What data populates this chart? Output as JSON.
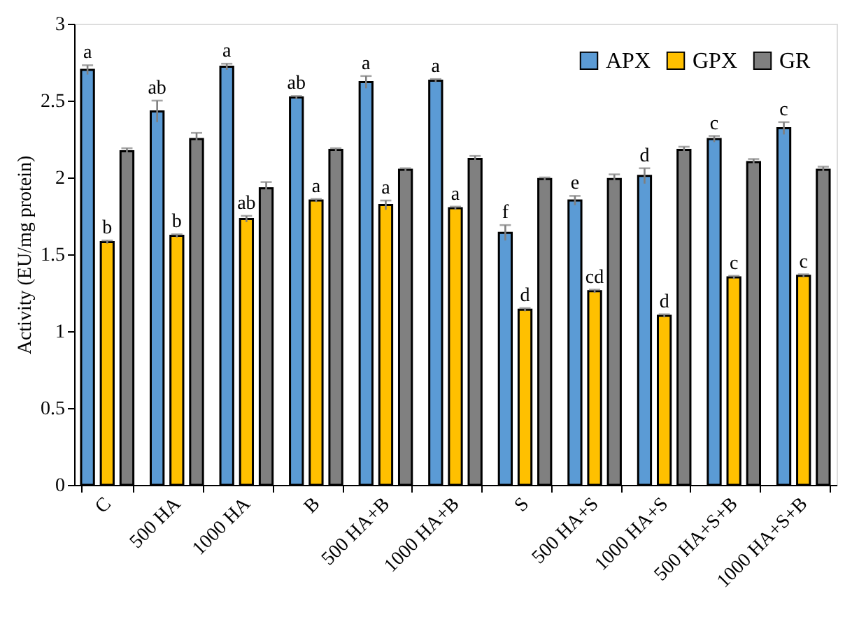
{
  "chart_data": {
    "type": "bar",
    "ylabel": "Activity (EU/mg protein)",
    "categories": [
      "C",
      "500 HA",
      "1000 HA",
      "B",
      "500 HA+B",
      "1000 HA+B",
      "S",
      "500 HA+S",
      "1000 HA+S",
      "500 HA+S+B",
      "1000 HA+S+B"
    ],
    "series": [
      {
        "name": "APX",
        "color": "#5b9bd5",
        "values": [
          2.7,
          2.43,
          2.72,
          2.52,
          2.62,
          2.63,
          1.64,
          1.85,
          2.01,
          2.25,
          2.32
        ],
        "errors": [
          0.03,
          0.07,
          0.02,
          0.01,
          0.04,
          0.01,
          0.05,
          0.03,
          0.05,
          0.02,
          0.04
        ],
        "value_labels": [
          "a",
          "ab",
          "a",
          "ab",
          "a",
          "a",
          "f",
          "e",
          "d",
          "c",
          "c"
        ]
      },
      {
        "name": "GPX",
        "color": "#ffc000",
        "values": [
          1.58,
          1.62,
          1.73,
          1.85,
          1.82,
          1.8,
          1.14,
          1.26,
          1.1,
          1.35,
          1.36
        ],
        "errors": [
          0.01,
          0.01,
          0.02,
          0.01,
          0.03,
          0.01,
          0.01,
          0.01,
          0.01,
          0.01,
          0.01
        ],
        "value_labels": [
          "b",
          "b",
          "ab",
          "a",
          "a",
          "a",
          "d",
          "cd",
          "d",
          "c",
          "c"
        ]
      },
      {
        "name": "GR",
        "color": "#808080",
        "values": [
          2.17,
          2.25,
          1.93,
          2.18,
          2.05,
          2.12,
          1.99,
          1.99,
          2.18,
          2.1,
          2.05
        ],
        "errors": [
          0.02,
          0.04,
          0.04,
          0.01,
          0.01,
          0.02,
          0.01,
          0.03,
          0.02,
          0.02,
          0.02
        ]
      }
    ],
    "ylim": [
      0,
      3
    ],
    "yticks": [
      0,
      0.5,
      1,
      1.5,
      2,
      2.5,
      3
    ],
    "grid": false,
    "legend": "top right"
  }
}
